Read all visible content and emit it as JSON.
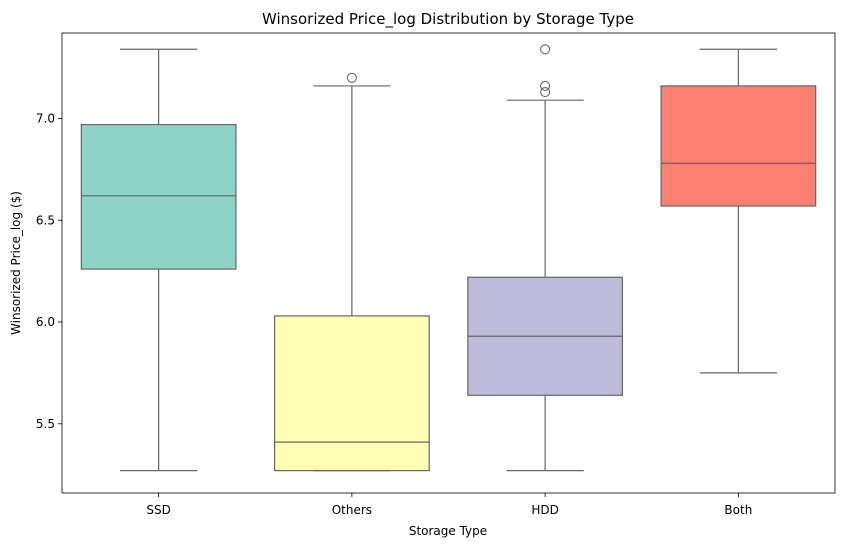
{
  "chart_data": {
    "type": "box",
    "title": "Winsorized Price_log Distribution by Storage Type",
    "xlabel": "Storage Type",
    "ylabel": "Winsorized Price_log ($)",
    "ylim": [
      5.16,
      7.42
    ],
    "yticks": [
      5.5,
      6.0,
      6.5,
      7.0
    ],
    "ytick_labels": [
      "5.5",
      "6.0",
      "6.5",
      "7.0"
    ],
    "grid": false,
    "categories": [
      "SSD",
      "Others",
      "HDD",
      "Both"
    ],
    "boxes": [
      {
        "category": "SSD",
        "whisker_low": 5.27,
        "q1": 6.26,
        "median": 6.62,
        "q3": 6.97,
        "whisker_high": 7.34,
        "outliers": [],
        "color": "#8dd3c7"
      },
      {
        "category": "Others",
        "whisker_low": 5.27,
        "q1": 5.27,
        "median": 5.41,
        "q3": 6.03,
        "whisker_high": 7.16,
        "outliers": [
          7.2
        ],
        "color": "#ffffb3"
      },
      {
        "category": "HDD",
        "whisker_low": 5.27,
        "q1": 5.64,
        "median": 5.93,
        "q3": 6.22,
        "whisker_high": 7.09,
        "outliers": [
          7.13,
          7.16,
          7.34
        ],
        "color": "#bebada"
      },
      {
        "category": "Both",
        "whisker_low": 5.75,
        "q1": 6.57,
        "median": 6.78,
        "q3": 7.16,
        "whisker_high": 7.34,
        "outliers": [],
        "color": "#fb8072"
      }
    ]
  }
}
